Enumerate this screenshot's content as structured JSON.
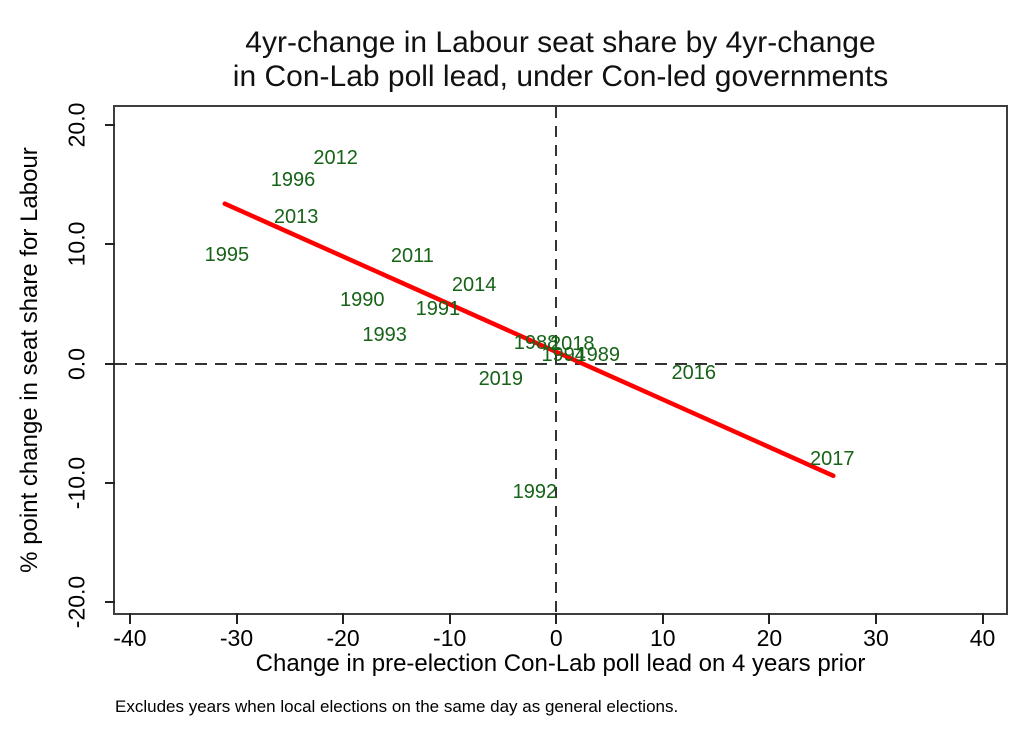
{
  "chart_data": {
    "type": "scatter",
    "title": [
      "4yr-change in Labour seat share by 4yr-change",
      "in Con-Lab poll lead, under Con-led governments"
    ],
    "xlabel": "Change in pre-election Con-Lab poll lead on 4 years prior",
    "ylabel": "% point change in seat share for Labour",
    "note": "Excludes years when local elections on the same day as general elections.",
    "xlim": [
      -41.4,
      42.2
    ],
    "ylim": [
      -20.9,
      21.5
    ],
    "xticks": [
      -40,
      -30,
      -20,
      -10,
      0,
      10,
      20,
      30,
      40
    ],
    "xtick_labels": [
      "-40",
      "-30",
      "-20",
      "-10",
      "0",
      "10",
      "20",
      "30",
      "40"
    ],
    "yticks": [
      20,
      10,
      0,
      -10,
      -20
    ],
    "ytick_labels": [
      "20.0",
      "10.0",
      "0.0",
      "-10.0",
      "-20.0"
    ],
    "grid": false,
    "legend": null,
    "reference_lines": {
      "x": 0,
      "y": 0
    },
    "marker_style": "year-text-labels-only",
    "points": [
      {
        "label": "1988",
        "x": -1.9,
        "y": 1.7
      },
      {
        "label": "1989",
        "x": 3.9,
        "y": 0.7
      },
      {
        "label": "1990",
        "x": -18.2,
        "y": 5.3
      },
      {
        "label": "1991",
        "x": -11.1,
        "y": 4.6
      },
      {
        "label": "1992",
        "x": -2.0,
        "y": -10.8
      },
      {
        "label": "1993",
        "x": -16.1,
        "y": 2.4
      },
      {
        "label": "1994",
        "x": 0.7,
        "y": 0.7
      },
      {
        "label": "1995",
        "x": -30.9,
        "y": 9.1
      },
      {
        "label": "1996",
        "x": -24.7,
        "y": 15.4
      },
      {
        "label": "2011",
        "x": -13.5,
        "y": 9.0
      },
      {
        "label": "2012",
        "x": -20.7,
        "y": 17.2
      },
      {
        "label": "2013",
        "x": -24.4,
        "y": 12.3
      },
      {
        "label": "2014",
        "x": -7.7,
        "y": 6.6
      },
      {
        "label": "2016",
        "x": 12.9,
        "y": -0.8
      },
      {
        "label": "2017",
        "x": 25.9,
        "y": -8.0
      },
      {
        "label": "2018",
        "x": 1.5,
        "y": 1.6
      },
      {
        "label": "2019",
        "x": -5.2,
        "y": -1.3
      }
    ],
    "fit_line": {
      "x_start": -31.1,
      "y_start": 13.4,
      "x_end": 26.0,
      "y_end": -9.4
    },
    "colors": {
      "point_label": "#176317",
      "fit_line": "#ff0000",
      "reference_line": "#333333",
      "frame": "#3d3d3d",
      "tick": "#222222",
      "text": "#000000",
      "background": "#ffffff"
    }
  }
}
